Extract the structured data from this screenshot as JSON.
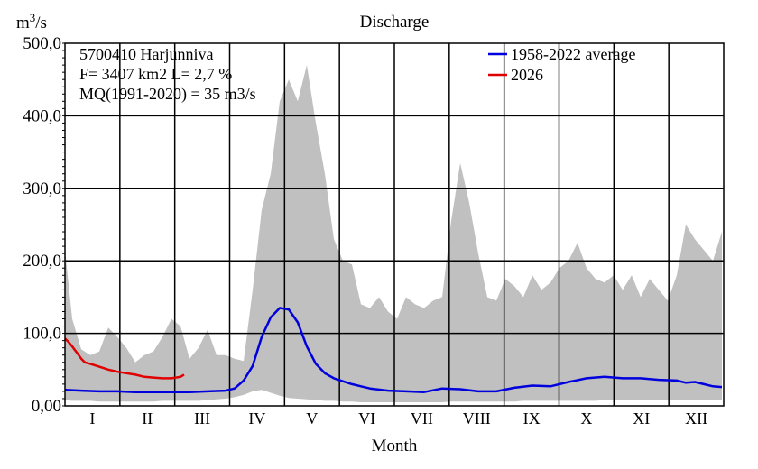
{
  "chart_data": {
    "type": "area",
    "title": "Discharge",
    "ylabel_base": "m",
    "ylabel_sup": "3",
    "ylabel_rest": "/s",
    "xlabel": "Month",
    "ylim": [
      0,
      500
    ],
    "yticks": [
      "0,00",
      "100,0",
      "200,0",
      "300,0",
      "400,0",
      "500,0"
    ],
    "ytick_values": [
      0,
      100,
      200,
      300,
      400,
      500
    ],
    "months": [
      "I",
      "II",
      "III",
      "IV",
      "V",
      "VI",
      "VII",
      "VIII",
      "IX",
      "X",
      "XI",
      "XII"
    ],
    "grid": true,
    "legend_position": "top-right",
    "info_lines": [
      "5700410 Harjunniva",
      "F=   3407 km2 L=  2,7 %",
      "MQ(1991-2020) = 35 m3/s"
    ],
    "range_band": {
      "color": "#c0c0c0",
      "x_days": [
        1,
        5,
        10,
        15,
        20,
        25,
        30,
        35,
        40,
        45,
        50,
        55,
        60,
        65,
        70,
        75,
        80,
        85,
        90,
        95,
        100,
        105,
        110,
        115,
        120,
        125,
        130,
        135,
        140,
        145,
        150,
        155,
        160,
        165,
        170,
        175,
        180,
        185,
        190,
        195,
        200,
        205,
        210,
        215,
        220,
        225,
        230,
        235,
        240,
        245,
        250,
        255,
        260,
        265,
        270,
        275,
        280,
        285,
        290,
        295,
        300,
        305,
        310,
        315,
        320,
        325,
        330,
        335,
        340,
        345,
        350,
        355,
        360,
        365
      ],
      "max": [
        215,
        120,
        78,
        70,
        75,
        108,
        95,
        80,
        60,
        70,
        75,
        95,
        120,
        110,
        65,
        80,
        105,
        70,
        70,
        65,
        62,
        160,
        270,
        320,
        420,
        450,
        420,
        470,
        390,
        320,
        230,
        200,
        195,
        140,
        135,
        150,
        130,
        120,
        150,
        140,
        135,
        145,
        150,
        255,
        335,
        280,
        210,
        150,
        145,
        175,
        165,
        150,
        180,
        160,
        170,
        190,
        200,
        225,
        190,
        175,
        170,
        180,
        160,
        180,
        150,
        175,
        160,
        145,
        180,
        250,
        230,
        215,
        200,
        240
      ],
      "min": [
        8,
        7,
        7,
        7,
        6,
        6,
        6,
        6,
        6,
        6,
        6,
        7,
        7,
        7,
        7,
        7,
        8,
        9,
        10,
        12,
        15,
        20,
        22,
        18,
        14,
        11,
        10,
        9,
        8,
        7,
        7,
        6,
        6,
        5,
        5,
        5,
        5,
        5,
        5,
        5,
        5,
        5,
        5,
        6,
        6,
        6,
        6,
        6,
        6,
        6,
        6,
        7,
        7,
        7,
        7,
        7,
        7,
        7,
        7,
        7,
        8,
        8,
        8,
        8,
        8,
        8,
        8,
        8,
        8,
        8,
        8,
        8,
        8,
        8
      ]
    },
    "series": [
      {
        "name": "1958-2022 average",
        "color": "#0000dd",
        "x_days": [
          1,
          10,
          20,
          30,
          40,
          50,
          60,
          70,
          80,
          90,
          95,
          100,
          105,
          110,
          115,
          120,
          125,
          130,
          135,
          140,
          145,
          150,
          155,
          160,
          165,
          170,
          180,
          190,
          200,
          210,
          220,
          230,
          240,
          250,
          260,
          270,
          280,
          290,
          300,
          310,
          320,
          330,
          340,
          345,
          350,
          355,
          360,
          365
        ],
        "values": [
          22,
          21,
          20,
          20,
          19,
          19,
          19,
          19,
          20,
          21,
          24,
          35,
          55,
          95,
          122,
          135,
          133,
          115,
          82,
          58,
          45,
          38,
          34,
          30,
          27,
          24,
          21,
          20,
          19,
          24,
          23,
          20,
          20,
          25,
          28,
          27,
          33,
          38,
          40,
          38,
          38,
          36,
          35,
          32,
          33,
          30,
          27,
          26
        ]
      },
      {
        "name": "2026",
        "color": "#e00000",
        "x_days": [
          1,
          3,
          5,
          8,
          10,
          12,
          15,
          20,
          25,
          30,
          35,
          40,
          45,
          50,
          55,
          60,
          65,
          67
        ],
        "values": [
          93,
          88,
          82,
          72,
          65,
          60,
          58,
          54,
          50,
          47,
          45,
          43,
          40,
          39,
          38,
          38,
          40,
          43
        ]
      }
    ]
  }
}
